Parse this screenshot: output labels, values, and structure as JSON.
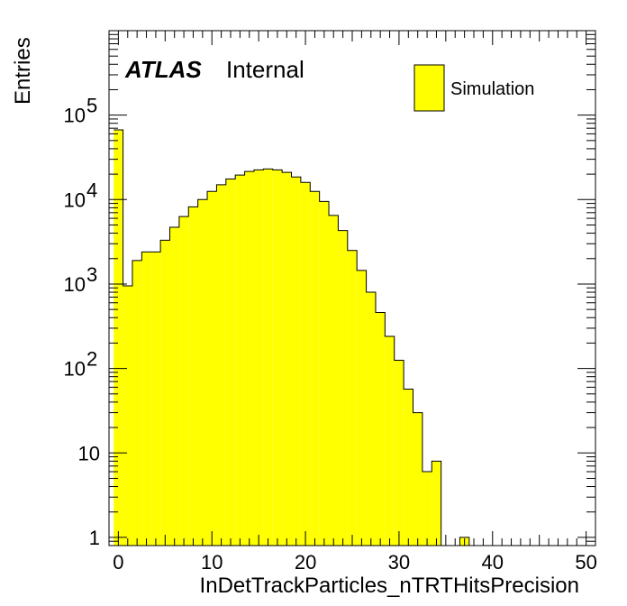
{
  "chart_data": {
    "type": "bar",
    "xlabel": "InDetTrackParticles_nTRTHitsPrecision",
    "ylabel": "Entries",
    "xlim": [
      -1,
      51
    ],
    "ylim": [
      0.8,
      1000000
    ],
    "yscale": "log",
    "x_ticks": [
      0,
      10,
      20,
      30,
      40,
      50
    ],
    "y_ticks": [
      {
        "value": 1,
        "label": "1"
      },
      {
        "value": 10,
        "label": "10"
      },
      {
        "value": 100,
        "base": "10",
        "exp": "2"
      },
      {
        "value": 1000,
        "base": "10",
        "exp": "3"
      },
      {
        "value": 10000,
        "base": "10",
        "exp": "4"
      },
      {
        "value": 100000,
        "base": "10",
        "exp": "5"
      }
    ],
    "bin_width": 1,
    "bin_start": -0.5,
    "values": [
      67000,
      950,
      1900,
      2400,
      2400,
      3300,
      4700,
      6300,
      8200,
      10000,
      12500,
      15000,
      17500,
      19500,
      21500,
      22500,
      23000,
      22500,
      21000,
      18500,
      16000,
      12500,
      9500,
      6500,
      4300,
      2500,
      1450,
      800,
      460,
      240,
      125,
      57,
      30,
      6,
      8,
      0,
      0,
      1,
      0,
      0,
      0,
      0,
      0,
      0,
      0,
      0,
      0,
      0,
      0,
      0,
      0
    ],
    "series": [
      {
        "name": "Simulation",
        "color": "#ffff00"
      }
    ],
    "legend_position": "top-right",
    "grid": false
  },
  "label": {
    "atlas": "ATLAS",
    "status": "Internal"
  }
}
